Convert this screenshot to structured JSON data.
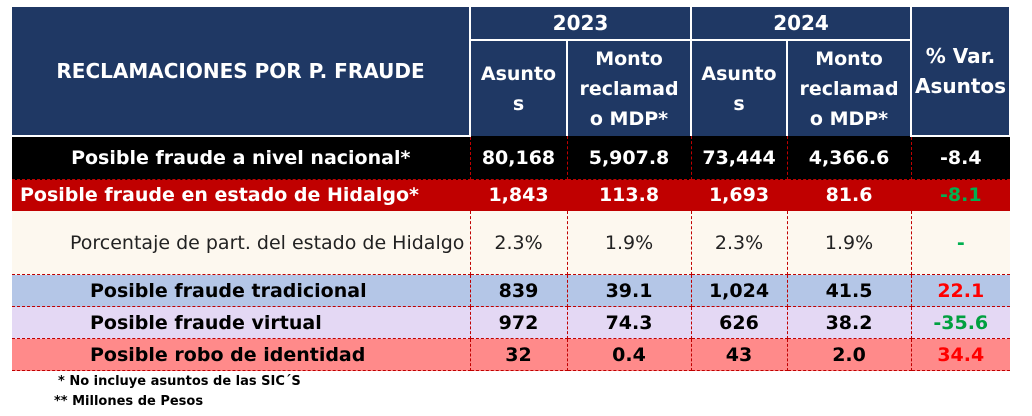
{
  "header": {
    "title": "RECLAMACIONES POR P. FRAUDE",
    "year_2023": "2023",
    "year_2024": "2024",
    "var_label": "% Var. Asuntos",
    "asuntos": "Asuntos",
    "monto": "Monto reclamado MDP*"
  },
  "rows": [
    {
      "label": "Posible fraude a nivel nacional*",
      "a2023": "80,168",
      "m2023": "5,907.8",
      "a2024": "73,444",
      "m2024": "4,366.6",
      "var": "-8.4"
    },
    {
      "label": "Posible fraude en estado de Hidalgo*",
      "a2023": "1,843",
      "m2023": "113.8",
      "a2024": "1,693",
      "m2024": "81.6",
      "var": "-8.1"
    },
    {
      "label": "Porcentaje de part.  del estado de Hidalgo",
      "a2023": "2.3%",
      "m2023": "1.9%",
      "a2024": "2.3%",
      "m2024": "1.9%",
      "var": "-"
    },
    {
      "label": "Posible fraude tradicional",
      "a2023": "839",
      "m2023": "39.1",
      "a2024": "1,024",
      "m2024": "41.5",
      "var": "22.1"
    },
    {
      "label": "Posible fraude virtual",
      "a2023": "972",
      "m2023": "74.3",
      "a2024": "626",
      "m2024": "38.2",
      "var": "-35.6"
    },
    {
      "label": "Posible robo de identidad",
      "a2023": "32",
      "m2023": "0.4",
      "a2024": "43",
      "m2024": "2.0",
      "var": "34.4"
    }
  ],
  "notes": {
    "note1": "* No incluye asuntos de las SIC´S",
    "note2": "** Millones de Pesos"
  },
  "colors": {
    "header_bg": "#1f3864",
    "national_bg": "#000000",
    "hidalgo_bg": "#c00000",
    "percent_bg": "#fdf8ef",
    "traditional_bg": "#b4c6e7",
    "virtual_bg": "#e4d8f4",
    "identity_bg": "#ff8a8a",
    "positive_var": "#ff0000",
    "negative_var": "#00b050"
  }
}
